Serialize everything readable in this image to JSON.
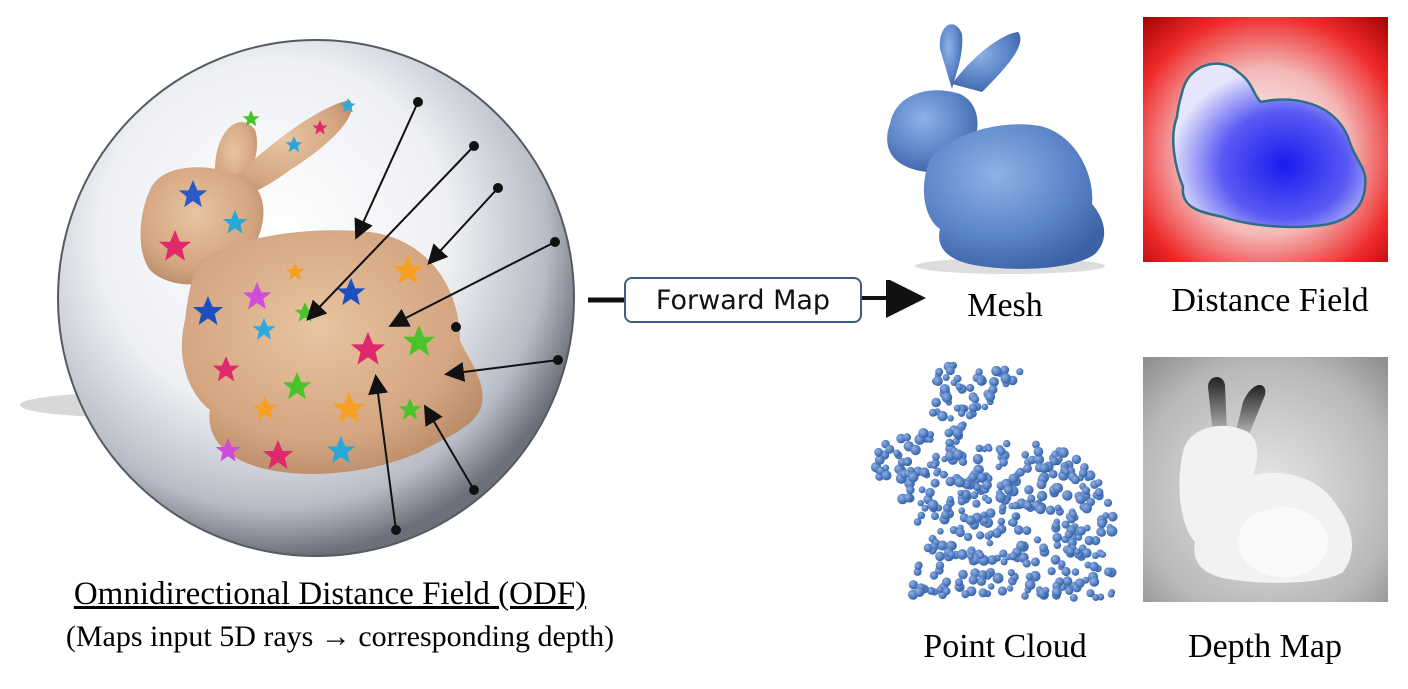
{
  "odf": {
    "title": "Omnidirectional Distance Field (ODF)",
    "subtitle": "(Maps input 5D rays →  corresponding depth)"
  },
  "forward_map": {
    "label": "Forward Map"
  },
  "outputs": {
    "mesh": "Mesh",
    "distance_field": "Distance Field",
    "point_cloud": "Point Cloud",
    "depth_map": "Depth Map"
  },
  "colors": {
    "mesh_blue": "#5b86c8",
    "df_red": "#ee1111",
    "df_blue": "#2222ee",
    "bunny_skin": "#d9b08c",
    "box_border": "#3e5d86"
  }
}
